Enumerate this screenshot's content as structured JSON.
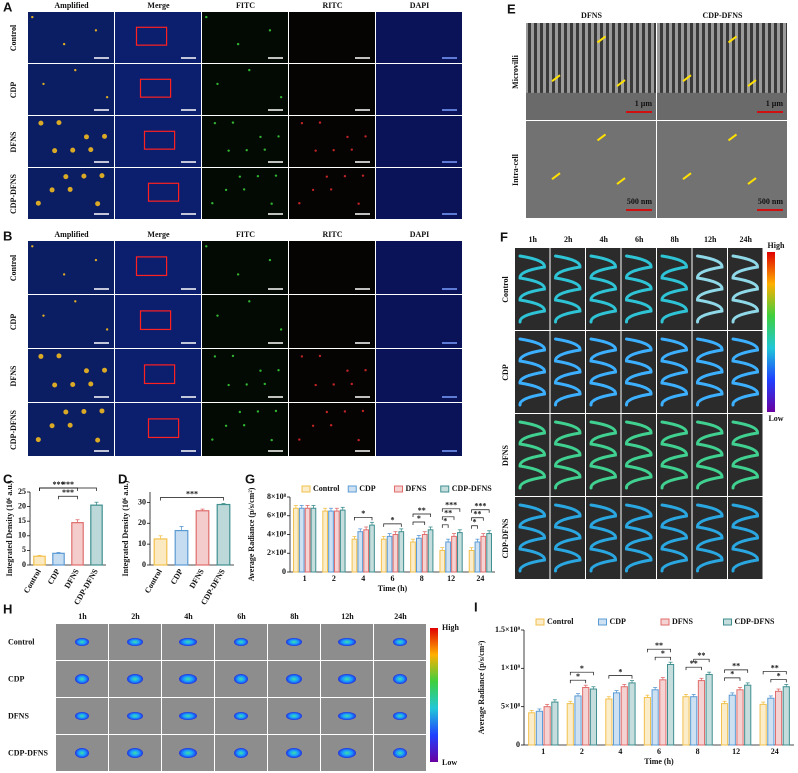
{
  "image_panels": {
    "A": {
      "label": "A",
      "columns": [
        "Amplified",
        "Merge",
        "FITC",
        "RITC",
        "DAPI"
      ],
      "rows": [
        "Control",
        "CDP",
        "DFNS",
        "CDP-DFNS"
      ]
    },
    "B": {
      "label": "B",
      "columns": [
        "Amplified",
        "Merge",
        "FITC",
        "RITC",
        "DAPI"
      ],
      "rows": [
        "Control",
        "CDP",
        "DFNS",
        "CDP-DFNS"
      ]
    },
    "E": {
      "label": "E",
      "columns": [
        "DFNS",
        "CDP-DFNS"
      ],
      "rows": [
        "Microvilli",
        "Intra-cell"
      ],
      "scale_bars": [
        [
          "1 μm",
          "1 μm"
        ],
        [
          "500 nm",
          "500 nm"
        ]
      ]
    },
    "F": {
      "label": "F",
      "columns": [
        "1h",
        "2h",
        "4h",
        "6h",
        "8h",
        "12h",
        "24h"
      ],
      "rows": [
        "Control",
        "CDP",
        "DFNS",
        "CDP-DFNS"
      ],
      "colorbar": [
        "High",
        "Low"
      ]
    },
    "H": {
      "label": "H",
      "columns": [
        "1h",
        "2h",
        "4h",
        "6h",
        "8h",
        "12h",
        "24h"
      ],
      "rows": [
        "Control",
        "CDP",
        "DFNS",
        "CDP-DFNS"
      ],
      "colorbar": [
        "High",
        "Low"
      ]
    }
  },
  "chart_data": [
    {
      "panel": "C",
      "type": "bar",
      "ylabel": "Integrated Density (10⁶ a.u.)",
      "categories": [
        "Control",
        "CDP",
        "DFNS",
        "CDP-DFNS"
      ],
      "values": [
        3,
        4,
        14.5,
        20.5
      ],
      "errors": [
        0.3,
        0.3,
        1,
        1
      ],
      "colors": [
        "#f2c14e",
        "#5b9bd5",
        "#e06c6c",
        "#3f8f8f"
      ],
      "ylim": [
        0,
        25
      ],
      "yticks": [
        0,
        5,
        10,
        15,
        20,
        25
      ],
      "significance": [
        {
          "from": 1,
          "to": 2,
          "label": "***"
        },
        {
          "from": 0,
          "to": 2,
          "label": "***"
        },
        {
          "from": 0,
          "to": 3,
          "label": "***"
        }
      ]
    },
    {
      "panel": "D",
      "type": "bar",
      "ylabel": "Integrated Density (10⁶ a.u.)",
      "categories": [
        "Control",
        "CDP",
        "DFNS",
        "CDP-DFNS"
      ],
      "values": [
        12.5,
        16.5,
        26,
        29
      ],
      "errors": [
        1.5,
        2,
        0.8,
        0.5
      ],
      "colors": [
        "#f2c14e",
        "#5b9bd5",
        "#e06c6c",
        "#3f8f8f"
      ],
      "ylim": [
        0,
        35
      ],
      "yticks": [
        0,
        10,
        20,
        30
      ],
      "significance": [
        {
          "from": 0,
          "to": 3,
          "label": "***"
        }
      ]
    },
    {
      "panel": "G",
      "type": "grouped_bar",
      "ylabel": "Average Radiance (p/s/cm²)",
      "xlabel": "Time (h)",
      "categories": [
        "1",
        "2",
        "4",
        "6",
        "8",
        "12",
        "24"
      ],
      "series": [
        {
          "name": "Control",
          "color": "#f2c14e",
          "values": [
            680000000,
            650000000,
            350000000,
            350000000,
            320000000,
            230000000,
            230000000
          ],
          "errors": [
            30000000,
            30000000,
            30000000,
            30000000,
            30000000,
            30000000,
            30000000
          ]
        },
        {
          "name": "CDP",
          "color": "#5b9bd5",
          "values": [
            680000000,
            650000000,
            430000000,
            380000000,
            360000000,
            320000000,
            320000000
          ],
          "errors": [
            30000000,
            30000000,
            30000000,
            30000000,
            30000000,
            30000000,
            30000000
          ]
        },
        {
          "name": "DFNS",
          "color": "#e06c6c",
          "values": [
            680000000,
            650000000,
            450000000,
            400000000,
            400000000,
            380000000,
            380000000
          ],
          "errors": [
            30000000,
            30000000,
            30000000,
            30000000,
            30000000,
            30000000,
            30000000
          ]
        },
        {
          "name": "CDP-DFNS",
          "color": "#3f8f8f",
          "values": [
            680000000,
            660000000,
            500000000,
            430000000,
            450000000,
            420000000,
            410000000
          ],
          "errors": [
            30000000,
            30000000,
            30000000,
            30000000,
            30000000,
            30000000,
            30000000
          ]
        }
      ],
      "ylim": [
        0,
        800000000
      ],
      "yticks": [
        0,
        {
          "value": 200000000,
          "label": "2×10⁸"
        },
        {
          "value": 400000000,
          "label": "4×10⁸"
        },
        {
          "value": 600000000,
          "label": "6×10⁸"
        },
        {
          "value": 800000000,
          "label": "8×10⁸"
        }
      ],
      "significance": [
        {
          "group": 2,
          "from": 0,
          "to": 3,
          "label": "*"
        },
        {
          "group": 3,
          "from": 0,
          "to": 3,
          "label": "*"
        },
        {
          "group": 4,
          "from": 0,
          "to": 2,
          "label": "*"
        },
        {
          "group": 4,
          "from": 0,
          "to": 3,
          "label": "**"
        },
        {
          "group": 5,
          "from": 0,
          "to": 1,
          "label": "*"
        },
        {
          "group": 5,
          "from": 0,
          "to": 2,
          "label": "**"
        },
        {
          "group": 5,
          "from": 0,
          "to": 3,
          "label": "***"
        },
        {
          "group": 6,
          "from": 0,
          "to": 1,
          "label": "*"
        },
        {
          "group": 6,
          "from": 0,
          "to": 2,
          "label": "**"
        },
        {
          "group": 6,
          "from": 0,
          "to": 3,
          "label": "***"
        }
      ]
    },
    {
      "panel": "I",
      "type": "grouped_bar",
      "ylabel": "Average Radiance (p/s/cm²)",
      "xlabel": "Time (h)",
      "categories": [
        "1",
        "2",
        "4",
        "6",
        "8",
        "12",
        "24"
      ],
      "series": [
        {
          "name": "Control",
          "color": "#f2c14e",
          "values": [
            420000000,
            540000000,
            600000000,
            620000000,
            630000000,
            540000000,
            530000000
          ],
          "errors": [
            30000000,
            30000000,
            30000000,
            30000000,
            30000000,
            30000000,
            30000000
          ]
        },
        {
          "name": "CDP",
          "color": "#5b9bd5",
          "values": [
            440000000,
            640000000,
            680000000,
            720000000,
            630000000,
            650000000,
            610000000
          ],
          "errors": [
            30000000,
            30000000,
            30000000,
            30000000,
            30000000,
            30000000,
            30000000
          ]
        },
        {
          "name": "DFNS",
          "color": "#e06c6c",
          "values": [
            500000000,
            750000000,
            760000000,
            850000000,
            840000000,
            720000000,
            700000000
          ],
          "errors": [
            30000000,
            30000000,
            30000000,
            30000000,
            30000000,
            30000000,
            30000000
          ]
        },
        {
          "name": "CDP-DFNS",
          "color": "#3f8f8f",
          "values": [
            560000000,
            730000000,
            810000000,
            1050000000,
            920000000,
            780000000,
            760000000
          ],
          "errors": [
            30000000,
            30000000,
            30000000,
            30000000,
            30000000,
            30000000,
            30000000
          ]
        }
      ],
      "ylim": [
        0,
        1500000000
      ],
      "yticks": [
        0,
        {
          "value": 500000000,
          "label": "5×10⁸"
        },
        {
          "value": 1000000000,
          "label": "1×10⁹"
        },
        {
          "value": 1500000000,
          "label": "1.5×10⁹"
        }
      ],
      "significance": [
        {
          "group": 1,
          "from": 0,
          "to": 2,
          "label": "*"
        },
        {
          "group": 1,
          "from": 0,
          "to": 3,
          "label": "*"
        },
        {
          "group": 2,
          "from": 0,
          "to": 3,
          "label": "*"
        },
        {
          "group": 3,
          "from": 1,
          "to": 3,
          "label": "*"
        },
        {
          "group": 3,
          "from": 0,
          "to": 3,
          "label": "**"
        },
        {
          "group": 4,
          "from": 0,
          "to": 2,
          "label": "**"
        },
        {
          "group": 4,
          "from": 1,
          "to": 3,
          "label": "**"
        },
        {
          "group": 5,
          "from": 0,
          "to": 2,
          "label": "*"
        },
        {
          "group": 5,
          "from": 0,
          "to": 3,
          "label": "**"
        },
        {
          "group": 6,
          "from": 1,
          "to": 3,
          "label": "*"
        },
        {
          "group": 6,
          "from": 0,
          "to": 3,
          "label": "**"
        }
      ]
    }
  ]
}
